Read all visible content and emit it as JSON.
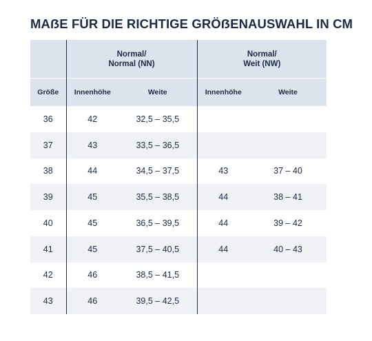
{
  "title": "MAẞE FÜR DIE RICHTIGE GRÖẞENAUSWAHL IN CM",
  "groups": [
    {
      "line1": "Normal/",
      "line2": "Normal (NN)"
    },
    {
      "line1": "Normal/",
      "line2": "Weit (NW)"
    }
  ],
  "columns": [
    "Größe",
    "Innenhöhe",
    "Weite",
    "Innenhöhe",
    "Weite"
  ],
  "rows": [
    {
      "size": "36",
      "nn_height": "42",
      "nn_width": "32,5 – 35,5",
      "nw_height": "",
      "nw_width": ""
    },
    {
      "size": "37",
      "nn_height": "43",
      "nn_width": "33,5 – 36,5",
      "nw_height": "",
      "nw_width": ""
    },
    {
      "size": "38",
      "nn_height": "44",
      "nn_width": "34,5 – 37,5",
      "nw_height": "43",
      "nw_width": "37 – 40"
    },
    {
      "size": "39",
      "nn_height": "45",
      "nn_width": "35,5 – 38,5",
      "nw_height": "44",
      "nw_width": "38 – 41"
    },
    {
      "size": "40",
      "nn_height": "45",
      "nn_width": "36,5 – 39,5",
      "nw_height": "44",
      "nw_width": "39 – 42"
    },
    {
      "size": "41",
      "nn_height": "45",
      "nn_width": "37,5 – 40,5",
      "nw_height": "44",
      "nw_width": "40 – 43"
    },
    {
      "size": "42",
      "nn_height": "46",
      "nn_width": "38,5 – 41,5",
      "nw_height": "",
      "nw_width": ""
    },
    {
      "size": "43",
      "nn_height": "46",
      "nn_width": "39,5 – 42,5",
      "nw_height": "",
      "nw_width": ""
    }
  ],
  "colors": {
    "header_bg": "#dde3ec",
    "stripe_bg": "#f0f2f6",
    "text": "#1d2a44"
  }
}
